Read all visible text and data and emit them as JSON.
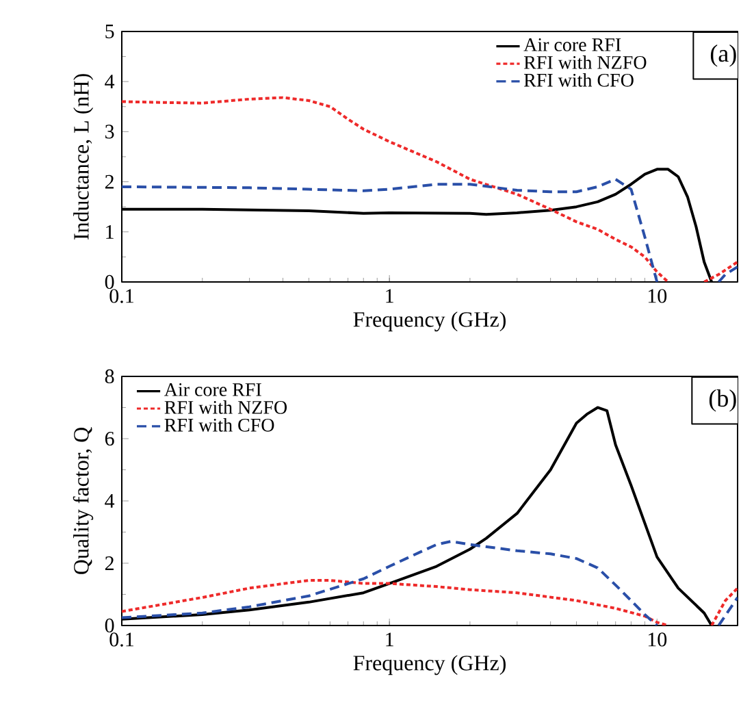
{
  "chart_data": [
    {
      "type": "line",
      "xlabel": "Frequency (GHz)",
      "ylabel": "Inductance, L (nH)",
      "annotations": [
        "(a)"
      ],
      "log": "x",
      "xlim": [
        0.1,
        20
      ],
      "xticks": [
        0.1,
        1,
        10
      ],
      "ylim": [
        0,
        5
      ],
      "yticks": [
        0,
        1,
        2,
        3,
        4,
        5
      ],
      "grid": false,
      "legend": "top right",
      "marker": "none",
      "series": [
        {
          "name": "Air core RFI",
          "color": "#000000",
          "line_style": "solid",
          "x": [
            0.1,
            0.2,
            0.5,
            0.8,
            1,
            2,
            2.3,
            3,
            4,
            5,
            6,
            7,
            8,
            9,
            10,
            11,
            12,
            13,
            14,
            15,
            16
          ],
          "values": [
            1.45,
            1.45,
            1.42,
            1.37,
            1.38,
            1.37,
            1.35,
            1.38,
            1.43,
            1.5,
            1.6,
            1.75,
            1.95,
            2.15,
            2.25,
            2.25,
            2.1,
            1.7,
            1.1,
            0.4,
            0
          ]
        },
        {
          "name": "RFI with NZFO",
          "color": "#ee2a2a",
          "line_style": "dotted",
          "x": [
            0.1,
            0.15,
            0.2,
            0.3,
            0.4,
            0.5,
            0.6,
            0.7,
            0.8,
            1,
            1.5,
            2,
            3,
            4,
            5,
            6,
            7,
            8,
            9,
            10,
            11,
            13,
            15,
            17,
            20
          ],
          "values": [
            3.6,
            3.58,
            3.57,
            3.65,
            3.68,
            3.62,
            3.5,
            3.25,
            3.05,
            2.8,
            2.4,
            2.05,
            1.75,
            1.45,
            1.2,
            1.05,
            0.85,
            0.7,
            0.5,
            0.2,
            0,
            null,
            0,
            0.15,
            0.4
          ]
        },
        {
          "name": "RFI with CFO",
          "color": "#2a4fa8",
          "line_style": "dashed",
          "x": [
            0.1,
            0.3,
            0.5,
            0.8,
            1,
            1.5,
            2,
            3,
            4,
            5,
            6,
            7,
            8,
            9,
            10,
            14,
            17,
            18,
            20
          ],
          "values": [
            1.9,
            1.88,
            1.85,
            1.82,
            1.85,
            1.95,
            1.95,
            1.83,
            1.8,
            1.8,
            1.9,
            2.05,
            1.85,
            0.9,
            0,
            null,
            0,
            0.15,
            0.3
          ]
        }
      ]
    },
    {
      "type": "line",
      "xlabel": "Frequency (GHz)",
      "ylabel": "Quality factor, Q",
      "annotations": [
        "(b)"
      ],
      "log": "x",
      "xlim": [
        0.1,
        20
      ],
      "xticks": [
        0.1,
        1,
        10
      ],
      "ylim": [
        0,
        8
      ],
      "yticks": [
        0,
        2,
        4,
        6,
        8
      ],
      "grid": false,
      "legend": "top left",
      "marker": "none",
      "series": [
        {
          "name": "Air core RFI",
          "color": "#000000",
          "line_style": "solid",
          "x": [
            0.1,
            0.2,
            0.3,
            0.5,
            0.8,
            1,
            1.5,
            2,
            2.3,
            3,
            4,
            5,
            5.5,
            6,
            6.5,
            7,
            8,
            10,
            12,
            15,
            16
          ],
          "values": [
            0.2,
            0.35,
            0.5,
            0.75,
            1.05,
            1.35,
            1.9,
            2.45,
            2.8,
            3.6,
            5.0,
            6.5,
            6.8,
            7.0,
            6.9,
            5.8,
            4.5,
            2.2,
            1.2,
            0.4,
            0
          ]
        },
        {
          "name": "RFI with NZFO",
          "color": "#ee2a2a",
          "line_style": "dotted",
          "x": [
            0.1,
            0.2,
            0.3,
            0.5,
            0.6,
            0.8,
            1,
            1.5,
            2,
            3,
            5,
            7,
            9,
            10,
            11,
            13,
            16,
            18,
            20
          ],
          "values": [
            0.45,
            0.9,
            1.2,
            1.45,
            1.45,
            1.35,
            1.35,
            1.25,
            1.15,
            1.05,
            0.8,
            0.55,
            0.3,
            0.1,
            0,
            null,
            0,
            0.8,
            1.2
          ]
        },
        {
          "name": "RFI with CFO",
          "color": "#2a4fa8",
          "line_style": "dashed",
          "x": [
            0.1,
            0.2,
            0.3,
            0.5,
            0.8,
            1,
            1.5,
            1.7,
            2,
            3,
            4,
            5,
            6,
            7,
            8,
            9,
            10,
            14,
            17,
            20
          ],
          "values": [
            0.25,
            0.4,
            0.6,
            0.95,
            1.5,
            1.9,
            2.6,
            2.7,
            2.6,
            2.4,
            2.3,
            2.15,
            1.85,
            1.3,
            0.8,
            0.35,
            0,
            null,
            0,
            0.9
          ]
        }
      ]
    }
  ]
}
